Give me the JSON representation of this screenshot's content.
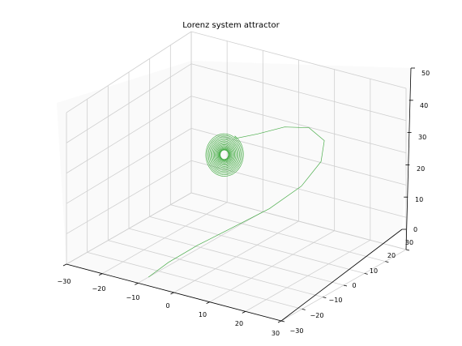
{
  "chart_data": {
    "type": "line",
    "projection": "3d",
    "title": "Lorenz system attractor",
    "xlabel": "",
    "ylabel": "",
    "zlabel": "",
    "grid": true,
    "legend": "none",
    "xlim": [
      -30,
      30
    ],
    "ylim": [
      -30,
      30
    ],
    "zlim": [
      0,
      50
    ],
    "xticks": [
      "−30",
      "−20",
      "−10",
      "0",
      "10",
      "20",
      "30"
    ],
    "yticks": [
      "−30",
      "−20",
      "−10",
      "0",
      "10",
      "20",
      "30"
    ],
    "zticks": [
      "0",
      "10",
      "20",
      "30",
      "40",
      "50"
    ],
    "series": [
      {
        "line_color": "#2ca02c",
        "description_points": "trajectory starting near (x≈-10,y≈25,z≈0), rising to a large arc (z≈45), then spiralling inward to a fixed point near (x≈-8,y≈-8,z≈27)",
        "x": [
          -10,
          -5,
          2,
          10,
          18,
          24,
          26,
          24,
          18,
          10,
          2,
          -5
        ],
        "y": [
          25,
          24,
          22,
          19,
          15,
          10,
          4,
          -1,
          -4,
          -6,
          -7,
          -8
        ],
        "z": [
          0,
          6,
          13,
          20,
          27,
          34,
          40,
          44,
          45,
          42,
          37,
          33
        ]
      }
    ],
    "spiral_center": {
      "x": -8,
      "y": -8,
      "z": 27
    }
  }
}
